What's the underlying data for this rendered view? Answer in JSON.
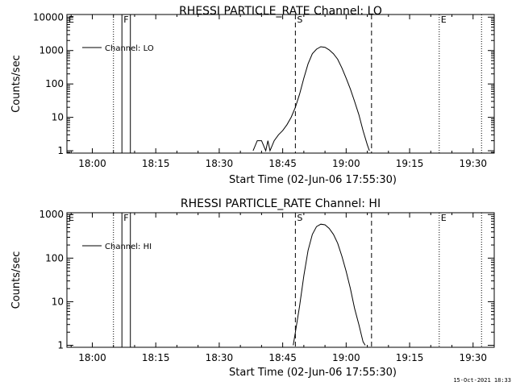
{
  "footer": {
    "timestamp": "15-Oct-2021 18:33"
  },
  "chart_data": [
    {
      "type": "line",
      "title": "RHESSI PARTICLE_RATE Channel: LO",
      "xlabel": "Start Time (02-Jun-06 17:55:30)",
      "ylabel": "Counts/sec",
      "xlim": [
        "17:54",
        "19:35"
      ],
      "ylim": [
        0.85,
        12000
      ],
      "yscale": "log",
      "xticks": [
        "18:00",
        "18:15",
        "18:30",
        "18:45",
        "19:00",
        "19:15",
        "19:30"
      ],
      "yticks": [
        "1",
        "10",
        "100",
        "1000",
        "10000"
      ],
      "legend": {
        "position": "top-left",
        "entries": [
          "Channel: LO"
        ]
      },
      "markers": [
        {
          "label": "E",
          "time": "17:54",
          "style": "none"
        },
        {
          "label": "",
          "time": "18:05",
          "style": "dotted"
        },
        {
          "label": "F",
          "time": "18:07",
          "style": "solid"
        },
        {
          "label": "",
          "time": "18:09",
          "style": "solid"
        },
        {
          "label": "S",
          "time": "18:48",
          "style": "dashed"
        },
        {
          "label": "",
          "time": "19:06",
          "style": "dashed"
        },
        {
          "label": "E",
          "time": "19:22",
          "style": "dotted"
        },
        {
          "label": "",
          "time": "19:32",
          "style": "dotted"
        }
      ],
      "series": [
        {
          "name": "Channel: LO",
          "points": [
            [
              "18:38",
              1
            ],
            [
              "18:39",
              2
            ],
            [
              "18:40",
              2
            ],
            [
              "18:41",
              1
            ],
            [
              "18:41.5",
              2
            ],
            [
              "18:42",
              1
            ],
            [
              "18:43",
              2
            ],
            [
              "18:44",
              3
            ],
            [
              "18:45",
              4
            ],
            [
              "18:46",
              6
            ],
            [
              "18:47",
              10
            ],
            [
              "18:48",
              20
            ],
            [
              "18:49",
              50
            ],
            [
              "18:50",
              150
            ],
            [
              "18:51",
              400
            ],
            [
              "18:52",
              800
            ],
            [
              "18:53",
              1100
            ],
            [
              "18:54",
              1300
            ],
            [
              "18:55",
              1250
            ],
            [
              "18:56",
              1050
            ],
            [
              "18:57",
              800
            ],
            [
              "18:58",
              550
            ],
            [
              "18:59",
              300
            ],
            [
              "19:00",
              150
            ],
            [
              "19:01",
              70
            ],
            [
              "19:02",
              30
            ],
            [
              "19:03",
              12
            ],
            [
              "19:04",
              4
            ],
            [
              "19:05",
              1.5
            ],
            [
              "19:05.5",
              1
            ]
          ]
        }
      ]
    },
    {
      "type": "line",
      "title": "RHESSI PARTICLE_RATE Channel: HI",
      "xlabel": "Start Time (02-Jun-06 17:55:30)",
      "ylabel": "Counts/sec",
      "xlim": [
        "17:54",
        "19:35"
      ],
      "ylim": [
        0.9,
        1100
      ],
      "yscale": "log",
      "xticks": [
        "18:00",
        "18:15",
        "18:30",
        "18:45",
        "19:00",
        "19:15",
        "19:30"
      ],
      "yticks": [
        "1",
        "10",
        "100",
        "1000"
      ],
      "legend": {
        "position": "top-left",
        "entries": [
          "Channel: HI"
        ]
      },
      "markers": [
        {
          "label": "E",
          "time": "17:54",
          "style": "none"
        },
        {
          "label": "",
          "time": "18:05",
          "style": "dotted"
        },
        {
          "label": "F",
          "time": "18:07",
          "style": "solid"
        },
        {
          "label": "",
          "time": "18:09",
          "style": "solid"
        },
        {
          "label": "S",
          "time": "18:48",
          "style": "dashed"
        },
        {
          "label": "",
          "time": "19:06",
          "style": "dashed"
        },
        {
          "label": "E",
          "time": "19:22",
          "style": "dotted"
        },
        {
          "label": "",
          "time": "19:32",
          "style": "dotted"
        }
      ],
      "series": [
        {
          "name": "Channel: HI",
          "points": [
            [
              "18:47.5",
              1
            ],
            [
              "18:48",
              2
            ],
            [
              "18:49",
              8
            ],
            [
              "18:50",
              40
            ],
            [
              "18:51",
              150
            ],
            [
              "18:52",
              350
            ],
            [
              "18:53",
              530
            ],
            [
              "18:54",
              600
            ],
            [
              "18:55",
              580
            ],
            [
              "18:56",
              480
            ],
            [
              "18:57",
              350
            ],
            [
              "18:58",
              220
            ],
            [
              "18:59",
              110
            ],
            [
              "19:00",
              50
            ],
            [
              "19:01",
              20
            ],
            [
              "19:02",
              7
            ],
            [
              "19:03",
              3
            ],
            [
              "19:04",
              1.2
            ],
            [
              "19:04.5",
              1
            ]
          ]
        }
      ]
    }
  ]
}
